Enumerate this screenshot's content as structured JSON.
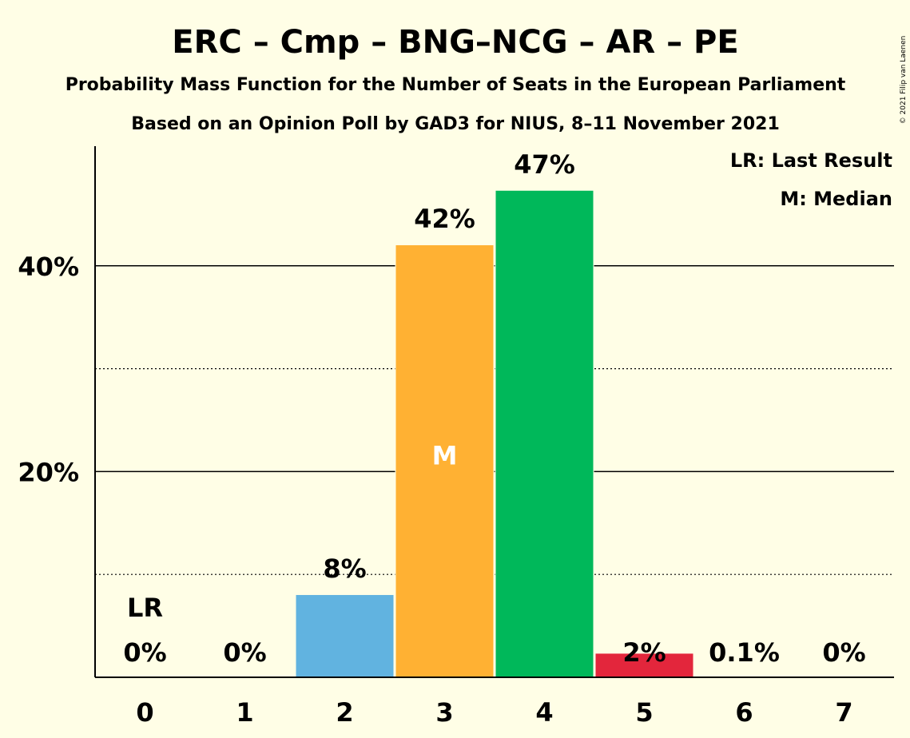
{
  "chart_data": {
    "type": "bar",
    "title": "ERC – Cmp – BNG–NCG – AR – PE",
    "subtitle": "Probability Mass Function for the Number of Seats in the European Parliament",
    "subtitle2": "Based on an Opinion Poll by GAD3 for NIUS, 8–11 November 2021",
    "copyright": "© 2021 Filip van Laenen",
    "categories": [
      "0",
      "1",
      "2",
      "3",
      "4",
      "5",
      "6",
      "7"
    ],
    "values": [
      0,
      0,
      8,
      42,
      47.3,
      2.3,
      0.1,
      0
    ],
    "value_labels": [
      "0%",
      "0%",
      "8%",
      "42%",
      "47%",
      "2%",
      "0.1%",
      "0%"
    ],
    "bar_colors": [
      "#FFFEE6",
      "#FFFEE6",
      "#61B3E0",
      "#FFB133",
      "#00B85A",
      "#E3263C",
      "#FFFEE6",
      "#FFFEE6"
    ],
    "ylim": [
      0,
      52
    ],
    "major_ticks": [
      20,
      40
    ],
    "major_tick_labels": [
      "20%",
      "40%"
    ],
    "minor_gridlines": [
      10,
      30
    ],
    "last_result_index": 0,
    "last_result_label": "LR",
    "median_index": 3,
    "median_label": "M",
    "legend": [
      "LR: Last Result",
      "M: Median"
    ],
    "legend_position": "top-right"
  }
}
